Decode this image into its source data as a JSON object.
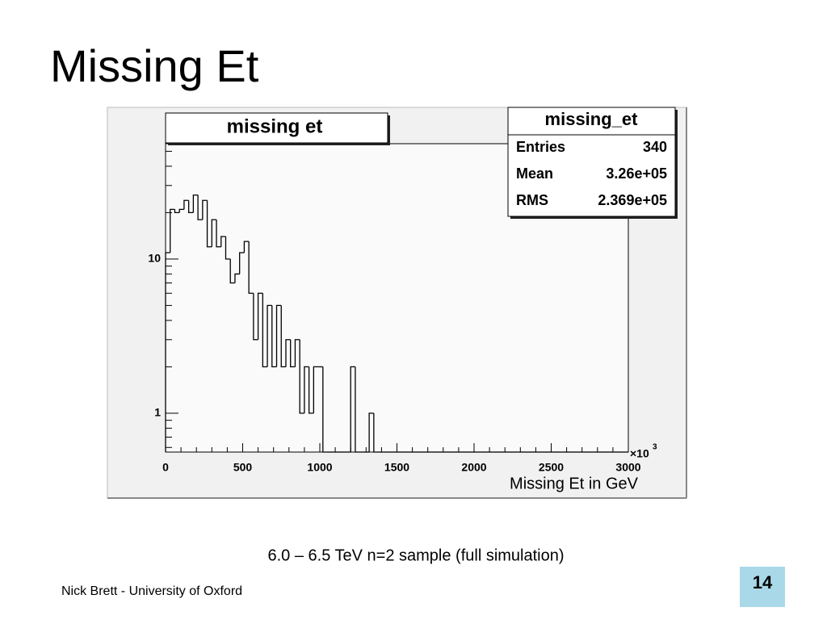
{
  "slide": {
    "title": "Missing Et",
    "caption": "6.0 – 6.5 TeV n=2 sample (full simulation)",
    "footer": "Nick Brett - University of Oxford",
    "page": "14"
  },
  "chart_data": {
    "type": "histogram",
    "title": "missing et",
    "x_label": "Missing Et in GeV",
    "x_multiplier": "×10",
    "x_multiplier_exponent": "3",
    "stats": {
      "title": "missing_et",
      "rows": [
        [
          "Entries",
          "340"
        ],
        [
          "Mean",
          "3.26e+05"
        ],
        [
          "RMS",
          "2.369e+05"
        ]
      ]
    },
    "bins": [
      0,
      30,
      60,
      90,
      120,
      150,
      180,
      210,
      240,
      270,
      300,
      330,
      360,
      390,
      420,
      450,
      480,
      510,
      540,
      570,
      600,
      630,
      660,
      690,
      720,
      750,
      780,
      810,
      840,
      870,
      900,
      930,
      960,
      990,
      1020,
      1050,
      1080,
      1110,
      1140,
      1170,
      1200,
      1230,
      1260,
      1290,
      1320,
      1350,
      1380,
      1410,
      1440,
      1470,
      1500,
      1530,
      1560,
      1590,
      1620,
      1650,
      1680,
      1710,
      1740,
      1770,
      1800,
      1830,
      1860,
      1890,
      1920,
      1950,
      1980,
      2010,
      2040,
      2070,
      2100,
      2130,
      2160,
      2190,
      2220,
      2250,
      2280,
      2310,
      2340,
      2370,
      2400,
      2430,
      2460,
      2490,
      2520,
      2550,
      2580,
      2610,
      2640,
      2670,
      2700,
      2730,
      2760,
      2790,
      2820,
      2850,
      2880,
      2910,
      2940,
      2970,
      3000
    ],
    "values": [
      11,
      21,
      20,
      21,
      24,
      20,
      26,
      18,
      24,
      12,
      18,
      12,
      14,
      10,
      7,
      8,
      11,
      13,
      6,
      3,
      6,
      2,
      5,
      2,
      5,
      2,
      3,
      2,
      3,
      1,
      2,
      1,
      2,
      2,
      0,
      0,
      0,
      0,
      0,
      0,
      2,
      0,
      0,
      0,
      1,
      0,
      0,
      0,
      0,
      0,
      0,
      0,
      0,
      0,
      0,
      0,
      0,
      0,
      0,
      0,
      0,
      0,
      0,
      0,
      0,
      0,
      0,
      0,
      0,
      0,
      0,
      0,
      0,
      0,
      0,
      0,
      0,
      0,
      0,
      0,
      0,
      0,
      0,
      0,
      0,
      0,
      0,
      0,
      0,
      0,
      0,
      0,
      0,
      0,
      0,
      0,
      0,
      0,
      0,
      0
    ],
    "color": "#000000",
    "log_y": true,
    "xlim": [
      0,
      3000
    ],
    "xticks": [
      0,
      500,
      1000,
      1500,
      2000,
      2500,
      3000
    ],
    "xminor": [
      100,
      200,
      300,
      400,
      600,
      700,
      800,
      900,
      1100,
      1200,
      1300,
      1400,
      1600,
      1700,
      1800,
      1900,
      2100,
      2200,
      2300,
      2400,
      2600,
      2700,
      2800,
      2900
    ],
    "ylim": [
      0.56,
      56
    ],
    "yticks": [
      1,
      10
    ],
    "yminor": [
      0.6,
      0.7,
      0.8,
      0.9,
      2,
      3,
      4,
      5,
      6,
      7,
      8,
      9,
      20,
      30,
      40,
      50
    ]
  }
}
